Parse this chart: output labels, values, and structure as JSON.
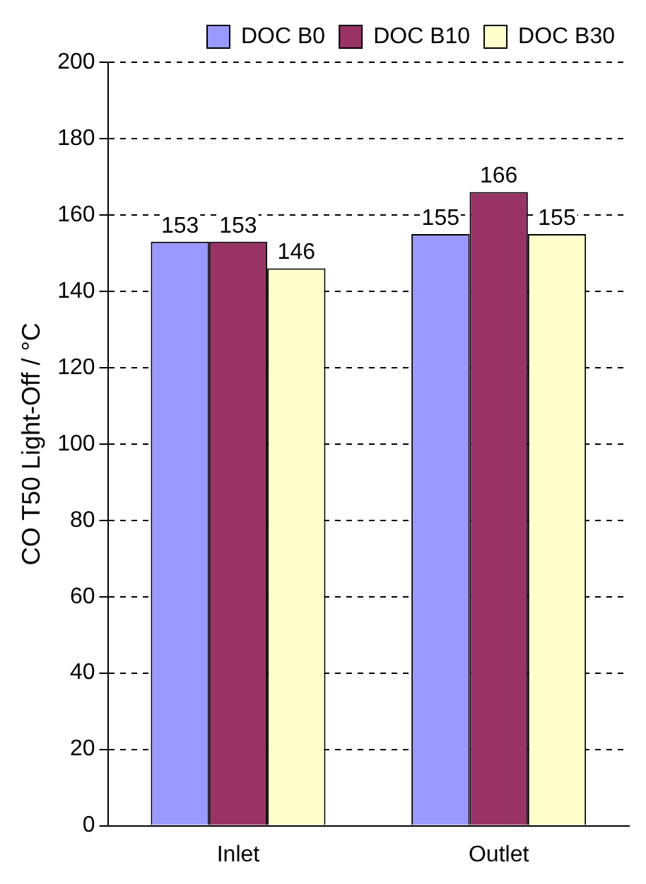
{
  "chart_data": {
    "type": "bar",
    "ylabel": "CO T50 Light-Off / °C",
    "categories": [
      "Inlet",
      "Outlet"
    ],
    "series": [
      {
        "name": "DOC B0",
        "color": "#9999ff",
        "values": [
          153,
          155
        ]
      },
      {
        "name": "DOC B10",
        "color": "#993366",
        "values": [
          153,
          166
        ]
      },
      {
        "name": "DOC B30",
        "color": "#ffffcc",
        "values": [
          146,
          155
        ]
      }
    ],
    "ylim": [
      0,
      200
    ],
    "yticks": [
      0,
      20,
      40,
      60,
      80,
      100,
      120,
      140,
      160,
      180,
      200
    ],
    "grid": "y",
    "legend": "top right",
    "data_labels": true
  }
}
